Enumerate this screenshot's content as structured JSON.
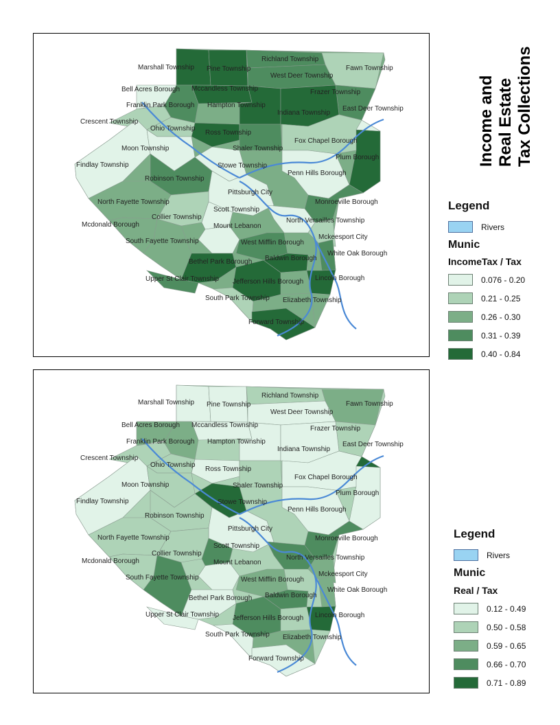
{
  "title": {
    "line1": "Income and",
    "line2": "Real Estate",
    "line3": "Tax Collections"
  },
  "colors": {
    "c1": "#e1f3e8",
    "c2": "#aed3b7",
    "c3": "#7cae87",
    "c4": "#4e8c5f",
    "c5": "#246a38",
    "river": "#4a89d6",
    "rivers_legend": "#99d3f2"
  },
  "map_top": {
    "legend": {
      "title": "Legend",
      "rivers_label": "Rivers",
      "layer": "Munic",
      "field": "IncomeTax / Tax",
      "classes": [
        "0.076 - 0.20",
        "0.21 - 0.25",
        "0.26 - 0.30",
        "0.31 - 0.39",
        "0.40 - 0.84"
      ]
    }
  },
  "map_bottom": {
    "legend": {
      "title": "Legend",
      "rivers_label": "Rivers",
      "layer": "Munic",
      "field": "Real / Tax",
      "classes": [
        "0.12 - 0.49",
        "0.50 - 0.58",
        "0.59 - 0.65",
        "0.66 - 0.70",
        "0.71 - 0.89"
      ]
    }
  },
  "labels": [
    "Marshall Township",
    "Pine Township",
    "Richland Township",
    "Fawn Township",
    "West Deer Township",
    "Bell Acres Borough",
    "Mccandless Township",
    "Frazer Township",
    "Franklin Park Borough",
    "Hampton Township",
    "East Deer Township",
    "Indiana Township",
    "Crescent Township",
    "Ohio Township",
    "Ross Township",
    "Fox Chapel Borough",
    "Moon Township",
    "Shaler Township",
    "Plum Borough",
    "Findlay Township",
    "Stowe Township",
    "Penn Hills Borough",
    "Robinson Township",
    "Pittsburgh City",
    "North Fayette Township",
    "Monroeville Borough",
    "Scott Township",
    "Collier Township",
    "North Versailles Township",
    "Mcdonald Borough",
    "Mount Lebanon",
    "Mckeesport City",
    "South Fayette Township",
    "West Mifflin Borough",
    "White Oak Borough",
    "Baldwin Borough",
    "Bethel Park Borough",
    "Upper St Clair Township",
    "Jefferson Hills Borough",
    "Lincoln Borough",
    "South Park Township",
    "Elizabeth Township",
    "Forward Township"
  ]
}
